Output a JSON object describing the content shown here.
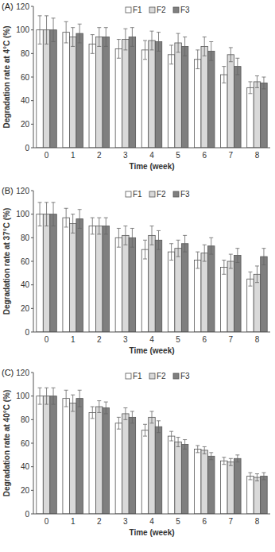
{
  "chart_data": [
    {
      "type": "bar",
      "title": "(A)",
      "x_label": "Time (week)",
      "y_label": "Degradation rate at 4°C (%)",
      "categories": [
        "0",
        "1",
        "2",
        "3",
        "4",
        "5",
        "6",
        "7",
        "8"
      ],
      "series": [
        {
          "name": "F1",
          "color": "#ffffff",
          "values": [
            100,
            98,
            88,
            84,
            83,
            79,
            75,
            62,
            51
          ],
          "errors": [
            12,
            9,
            8,
            8,
            8,
            8,
            8,
            7,
            5
          ]
        },
        {
          "name": "F2",
          "color": "#d9d9d9",
          "values": [
            100,
            94,
            94,
            92,
            91,
            89,
            86,
            79,
            56
          ],
          "errors": [
            12,
            8,
            8,
            9,
            8,
            8,
            8,
            6,
            5
          ]
        },
        {
          "name": "F3",
          "color": "#7f7f7f",
          "values": [
            100,
            97,
            94,
            94,
            90,
            86,
            82,
            69,
            55
          ],
          "errors": [
            10,
            8,
            8,
            8,
            8,
            8,
            8,
            7,
            5
          ]
        }
      ],
      "ylim": [
        0,
        120
      ],
      "yticks": [
        0,
        20,
        40,
        60,
        80,
        100,
        120
      ],
      "legend": "top",
      "grid": false
    },
    {
      "type": "bar",
      "title": "(B)",
      "x_label": "Time (week)",
      "y_label": "Degradation rate at 37°C (%)",
      "categories": [
        "0",
        "1",
        "2",
        "3",
        "4",
        "5",
        "6",
        "7",
        "8"
      ],
      "series": [
        {
          "name": "F1",
          "color": "#ffffff",
          "values": [
            100,
            97,
            90,
            80,
            70,
            68,
            61,
            55,
            45
          ],
          "errors": [
            10,
            8,
            7,
            8,
            8,
            7,
            7,
            6,
            6
          ]
        },
        {
          "name": "F2",
          "color": "#d9d9d9",
          "values": [
            100,
            92,
            90,
            82,
            82,
            71,
            67,
            60,
            49
          ],
          "errors": [
            10,
            8,
            7,
            8,
            8,
            7,
            7,
            6,
            7
          ]
        },
        {
          "name": "F3",
          "color": "#7f7f7f",
          "values": [
            100,
            96,
            90,
            80,
            78,
            75,
            73,
            65,
            64
          ],
          "errors": [
            10,
            8,
            7,
            8,
            8,
            7,
            7,
            6,
            7
          ]
        }
      ],
      "ylim": [
        0,
        120
      ],
      "yticks": [
        0,
        20,
        40,
        60,
        80,
        100,
        120
      ],
      "legend": "top",
      "grid": false
    },
    {
      "type": "bar",
      "title": "(C)",
      "x_label": "Time (week)",
      "y_label": "Degradation rate at 40°C (%)",
      "categories": [
        "0",
        "1",
        "2",
        "3",
        "4",
        "5",
        "6",
        "7",
        "8"
      ],
      "series": [
        {
          "name": "F1",
          "color": "#ffffff",
          "values": [
            100,
            98,
            86,
            77,
            71,
            66,
            55,
            45,
            32
          ],
          "errors": [
            7,
            7,
            5,
            5,
            5,
            4,
            3,
            3,
            3
          ]
        },
        {
          "name": "F2",
          "color": "#d9d9d9",
          "values": [
            100,
            94,
            91,
            85,
            82,
            61,
            54,
            44,
            31
          ],
          "errors": [
            7,
            7,
            5,
            5,
            5,
            4,
            3,
            3,
            3
          ]
        },
        {
          "name": "F3",
          "color": "#7f7f7f",
          "values": [
            100,
            98,
            90,
            82,
            74,
            59,
            49,
            47,
            32
          ],
          "errors": [
            7,
            7,
            5,
            5,
            5,
            4,
            3,
            3,
            3
          ]
        }
      ],
      "ylim": [
        0,
        120
      ],
      "yticks": [
        0,
        20,
        40,
        60,
        80,
        100,
        120
      ],
      "legend": "top",
      "grid": false
    }
  ]
}
